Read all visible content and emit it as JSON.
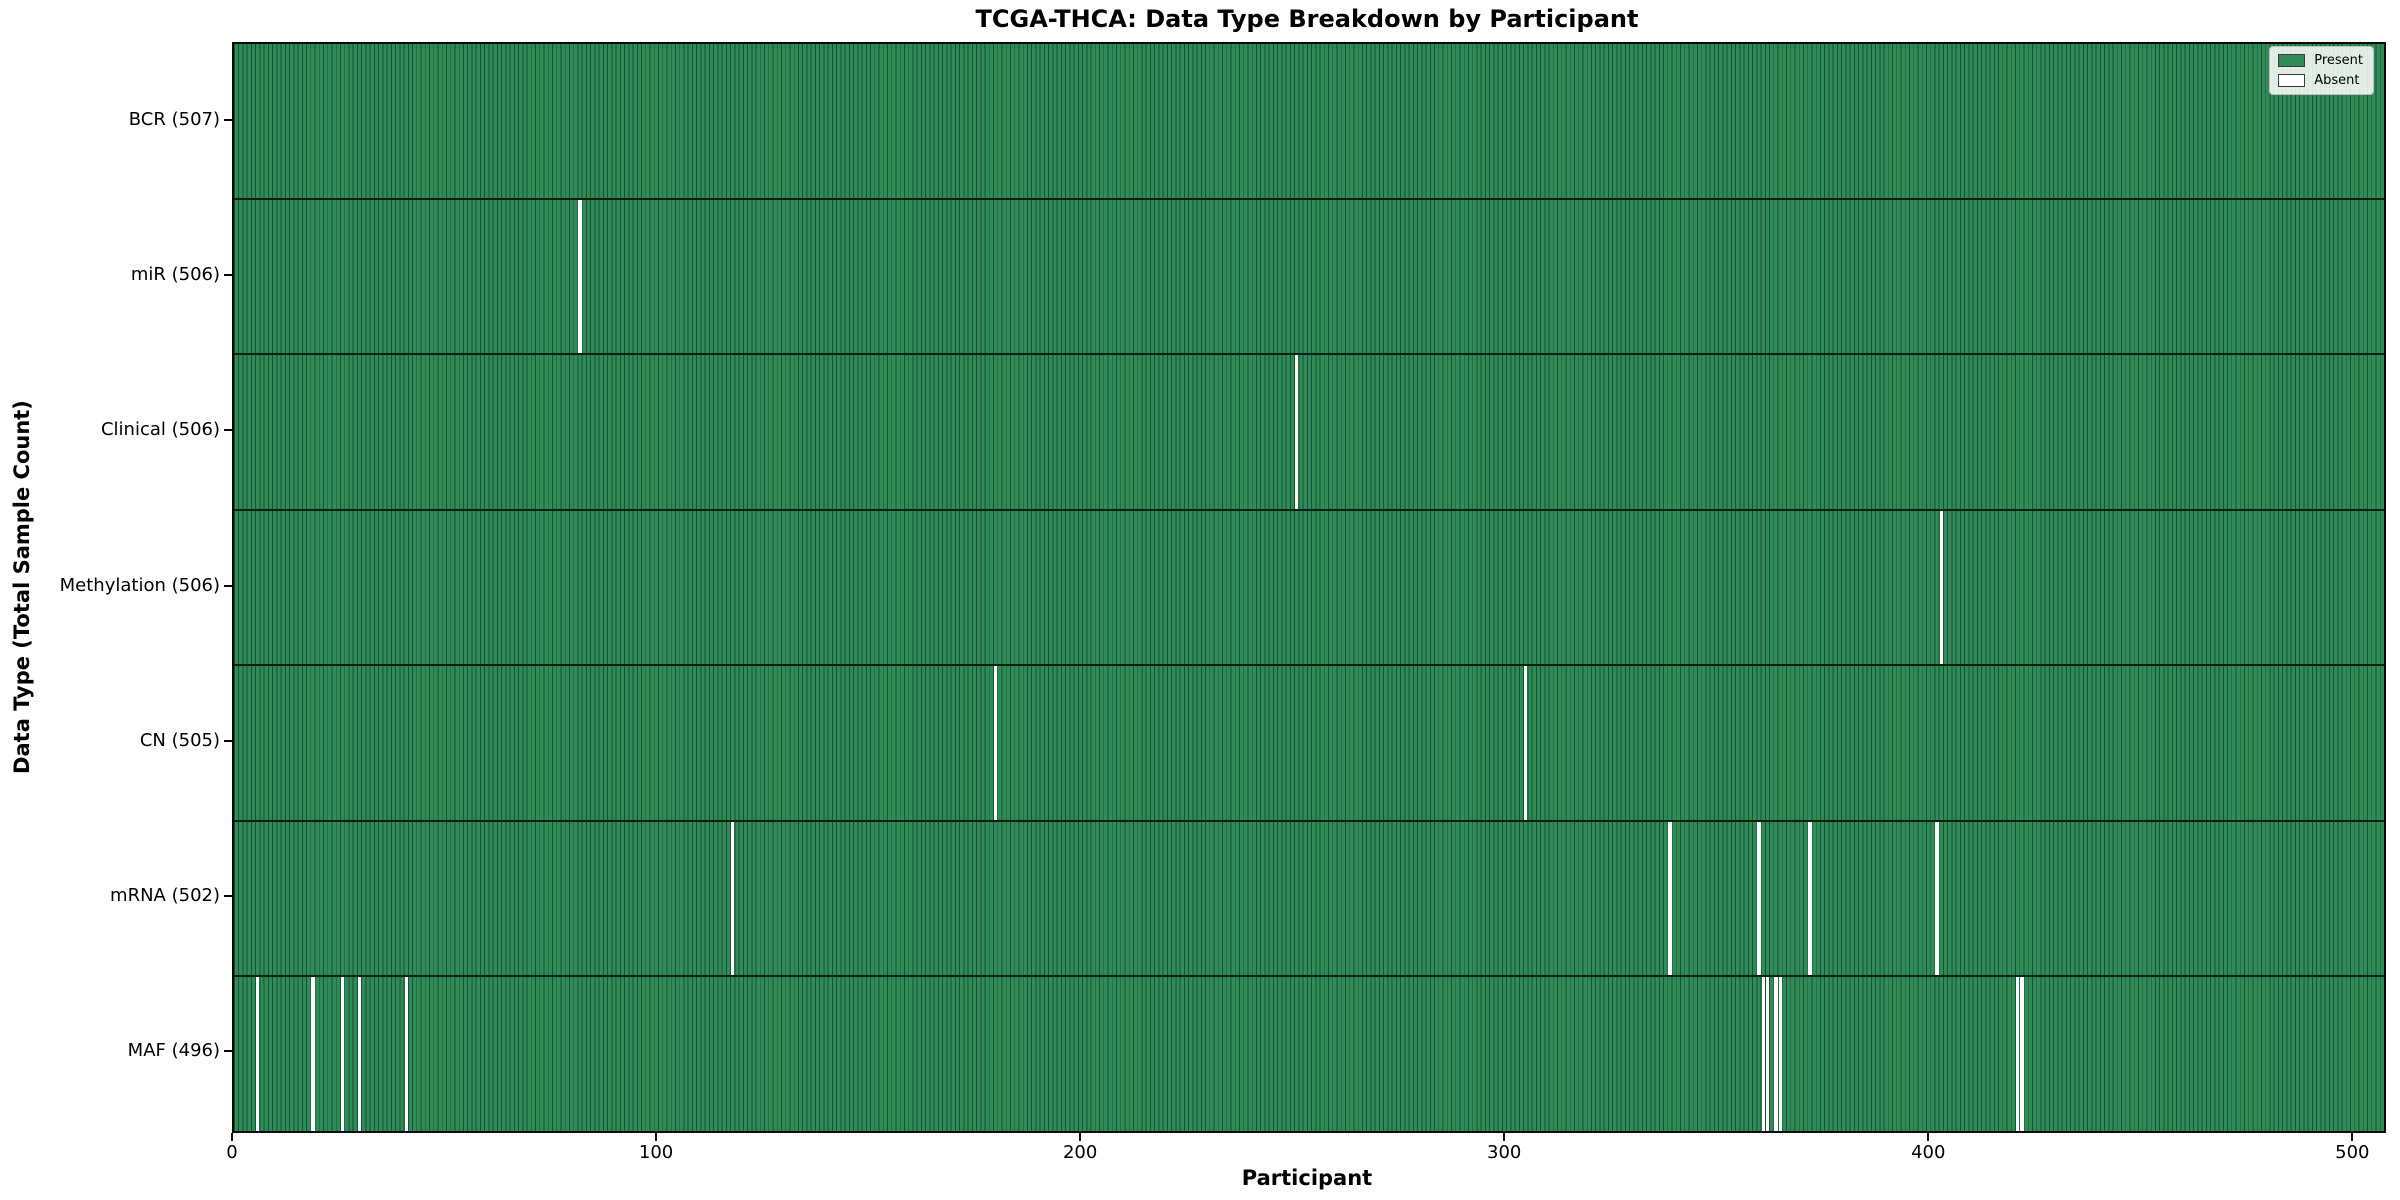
{
  "title": "TCGA-THCA: Data Type Breakdown by Participant",
  "chart_data": {
    "type": "heatmap",
    "title": "TCGA-THCA: Data Type Breakdown by Participant",
    "xlabel": "Participant",
    "ylabel": "Data Type (Total Sample Count)",
    "xlim": [
      0,
      507
    ],
    "x_ticks": [
      0,
      100,
      200,
      300,
      400,
      500
    ],
    "n_participants": 507,
    "grid": false,
    "legend": {
      "position": "upper right",
      "entries": [
        {
          "label": "Present",
          "color": "#2f8c58"
        },
        {
          "label": "Absent",
          "color": "#ffffff"
        }
      ]
    },
    "colors": {
      "present": "#2f8c58",
      "absent": "#ffffff",
      "bar_edge": "rgba(6,30,17,0.55)",
      "row_divider": "#0c2012",
      "axis": "#0a0a0a"
    },
    "rows": [
      {
        "data_type": "BCR",
        "label": "BCR (507)",
        "total": 507,
        "absent_participants": []
      },
      {
        "data_type": "miR",
        "label": "miR (506)",
        "total": 506,
        "absent_participants": [
          81
        ]
      },
      {
        "data_type": "Clinical",
        "label": "Clinical (506)",
        "total": 506,
        "absent_participants": [
          250
        ]
      },
      {
        "data_type": "Methylation",
        "label": "Methylation (506)",
        "total": 506,
        "absent_participants": [
          402
        ]
      },
      {
        "data_type": "CN",
        "label": "CN (505)",
        "total": 505,
        "absent_participants": [
          179,
          304
        ]
      },
      {
        "data_type": "mRNA",
        "label": "mRNA (502)",
        "total": 502,
        "absent_participants": [
          117,
          338,
          359,
          371,
          401
        ]
      },
      {
        "data_type": "MAF",
        "label": "MAF (496)",
        "total": 496,
        "absent_participants": [
          5,
          18,
          25,
          29,
          40,
          360,
          361,
          363,
          364,
          420,
          421
        ]
      }
    ]
  }
}
